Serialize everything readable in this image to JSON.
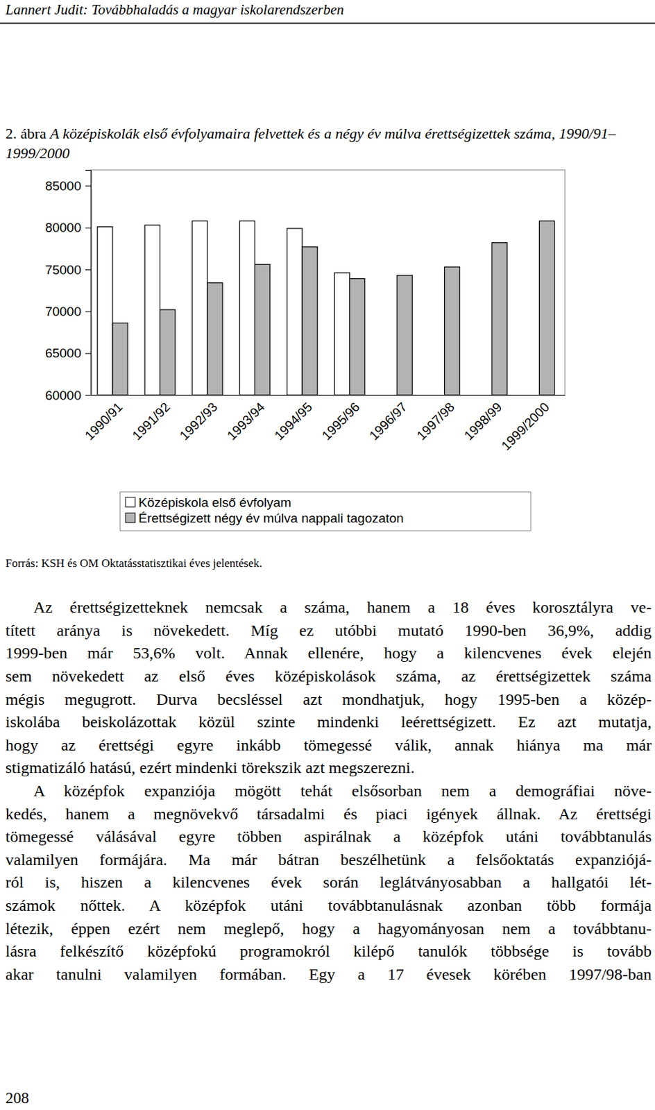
{
  "header": {
    "running_title": "Lannert Judit: Továbbhaladás a magyar iskolarendszerben"
  },
  "figure": {
    "number": "2. ábra",
    "caption": "A középiskolák első évfolyamaira felvettek és a négy év múlva érettségizettek száma, 1990/91–1999/2000"
  },
  "chart_data": {
    "type": "bar",
    "categories": [
      "1990/91",
      "1991/92",
      "1992/93",
      "1993/94",
      "1994/95",
      "1995/96",
      "1996/97",
      "1997/98",
      "1998/99",
      "1999/2000"
    ],
    "series": [
      {
        "name": "Középiskola első évfolyam",
        "color": "#ffffff",
        "values": [
          80100,
          80300,
          80800,
          80800,
          79900,
          74600,
          null,
          null,
          null,
          null
        ]
      },
      {
        "name": "Érettségizett négy év múlva nappali tagozaton",
        "color": "#b3b3b3",
        "values": [
          68600,
          70200,
          73400,
          75600,
          77700,
          73900,
          74300,
          75300,
          78200,
          80800
        ]
      }
    ],
    "ylim": [
      60000,
      86900
    ],
    "yticks": [
      60000,
      65000,
      70000,
      75000,
      80000,
      85000
    ],
    "grid": false,
    "legend": "bottom"
  },
  "source": "Forrás: KSH és OM Oktatásstatisztikai éves jelentések.",
  "body": {
    "paragraphs": [
      [
        "Az érettségizetteknek nemcsak a száma, hanem a 18 éves korosztályra ve-",
        "tített aránya is növekedett. Míg ez utóbbi mutató 1990-ben 36,9%, addig",
        "1999-ben már 53,6% volt. Annak ellenére, hogy a kilencvenes évek elején",
        "sem növekedett az első éves középiskolások száma, az érettségizettek száma",
        "mégis megugrott. Durva becsléssel azt mondhatjuk, hogy 1995-ben a közép-",
        "iskolába beiskolázottak közül szinte mindenki leérettségizett. Ez azt mutatja,",
        "hogy az érettségi egyre inkább tömegessé válik, annak hiánya ma már",
        "stigmatizáló hatású, ezért mindenki törekszik azt megszerezni."
      ],
      [
        "A középfok expanziója mögött tehát elsősorban nem a demográfiai növe-",
        "kedés, hanem a megnövekvő társadalmi és piaci igények állnak. Az érettségi",
        "tömegessé válásával egyre többen aspirálnak a középfok utáni továbbtanulás",
        "valamilyen formájára. Ma már bátran beszélhetünk a felsőoktatás expanziójá-",
        "ról is, hiszen a kilencvenes évek során leglátványosabban a hallgatói lét-",
        "számok nőttek. A középfok utáni továbbtanulásnak azonban több formája",
        "létezik, éppen ezért nem meglepő, hogy a hagyományosan nem a továbbtanu-",
        "lásra felkészítő középfokú programokról kilépő tanulók többsége is tovább",
        "akar tanulni valamilyen formában. Egy a 17 évesek körében 1997/98-ban"
      ]
    ]
  },
  "page_number": "208"
}
